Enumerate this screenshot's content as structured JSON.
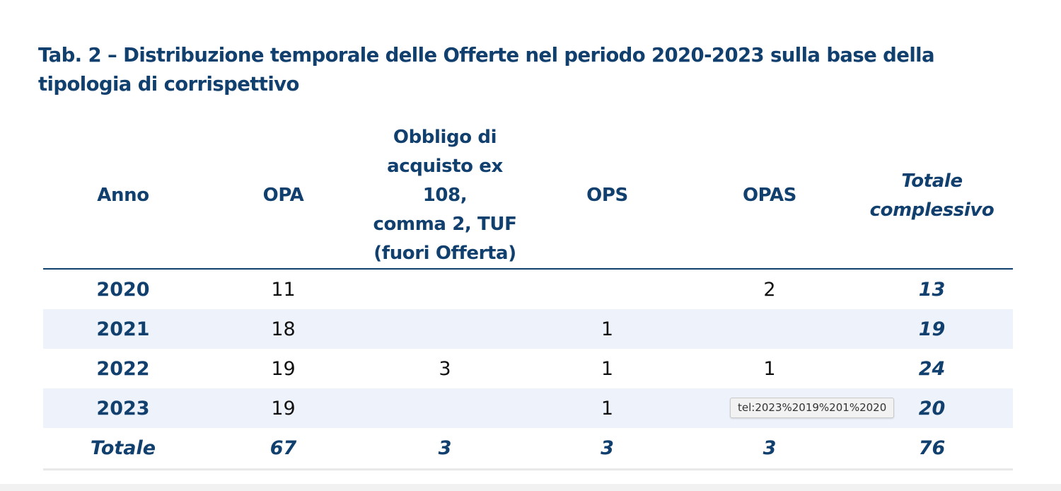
{
  "title": "Tab. 2 – Distribuzione temporale delle Offerte nel periodo 2020-2023 sulla base della tipologia di corrispettivo",
  "table": {
    "headers": [
      {
        "label": "Anno",
        "italic": false
      },
      {
        "label": "OPA",
        "italic": false
      },
      {
        "lines": [
          "Obbligo di",
          "acquisto ex 108,",
          "comma 2, TUF",
          "(fuori Offerta)"
        ],
        "italic": false
      },
      {
        "label": "OPS",
        "italic": false
      },
      {
        "label": "OPAS",
        "italic": false
      },
      {
        "lines": [
          "Totale",
          "complessivo"
        ],
        "italic": true
      }
    ],
    "rows": [
      [
        "2020",
        "11",
        "",
        "",
        "2",
        "13"
      ],
      [
        "2021",
        "18",
        "",
        "1",
        "",
        "19"
      ],
      [
        "2022",
        "19",
        "3",
        "1",
        "1",
        "24"
      ],
      [
        "2023",
        "19",
        "",
        "1",
        "",
        "20"
      ]
    ],
    "total_row": [
      "Totale",
      "67",
      "3",
      "3",
      "3",
      "76"
    ]
  },
  "tooltip": {
    "text": "tel:2023%2019%201%2020"
  },
  "colors": {
    "accent": "#12406e",
    "row_shading": "#eef2fb"
  }
}
